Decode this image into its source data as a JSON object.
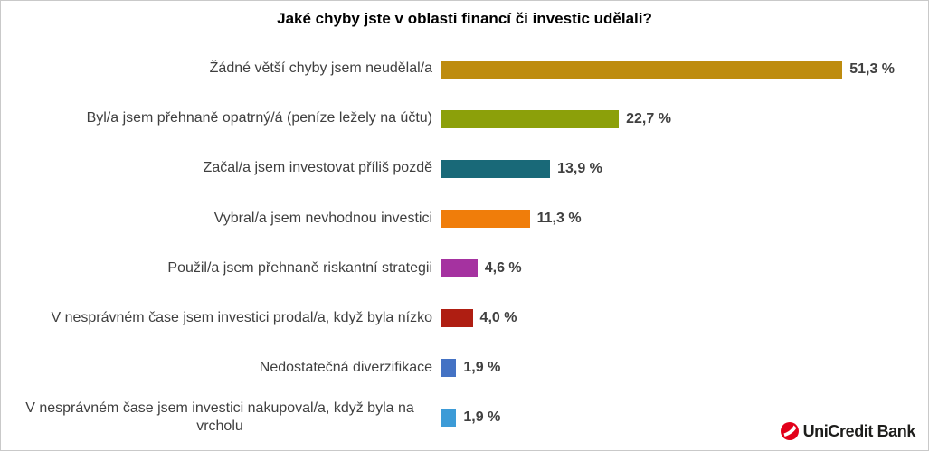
{
  "chart_data": {
    "type": "bar",
    "orientation": "horizontal",
    "title": "Jaké chyby jste v oblasti financí či investic udělali?",
    "xlabel": "",
    "ylabel": "",
    "xlim": [
      0,
      58
    ],
    "grid": false,
    "legend": "none",
    "value_format": "czech decimal comma, suffix ' %'",
    "categories": [
      "Žádné větší chyby jsem neudělal/a",
      "Byl/a jsem přehnaně opatrný/á (peníze ležely na účtu)",
      "Začal/a jsem investovat příliš pozdě",
      "Vybral/a jsem nevhodnou investici",
      "Použil/a jsem přehnaně riskantní strategii",
      "V nesprávném čase jsem investici prodal/a, když byla nízko",
      "Nedostatečná diverzifikace",
      "V nesprávném čase jsem investici nakupoval/a, když byla na vrcholu"
    ],
    "values": [
      51.3,
      22.7,
      13.9,
      11.3,
      4.6,
      4.0,
      1.9,
      1.9
    ],
    "value_labels": [
      "51,3 %",
      "22,7 %",
      "13,9 %",
      "11,3 %",
      "4,6 %",
      "4,0 %",
      "1,9 %",
      "1,9 %"
    ],
    "bar_colors": [
      "#BE8C0F",
      "#8CA00A",
      "#196978",
      "#F07D0A",
      "#A532A0",
      "#AF1E12",
      "#4472C4",
      "#3C9BD7"
    ],
    "axis_line_color": "#D0CECE",
    "label_color": "#3F3F3F",
    "value_label_color": "#404040"
  },
  "branding": {
    "logo_text": "UniCredit Bank",
    "logo_mark_color": "#E2001A"
  }
}
